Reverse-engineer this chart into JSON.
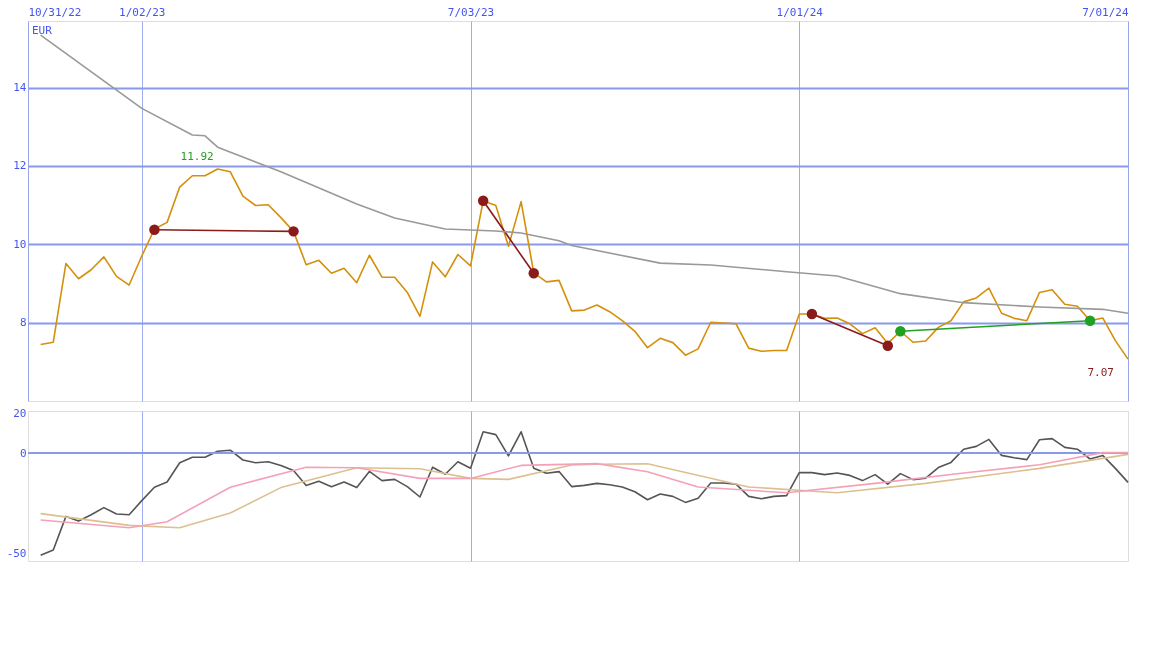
{
  "chart_data": [
    {
      "type": "line",
      "ylabel": "EUR",
      "x": [
        "2022-11-07",
        "2022-11-14",
        "2022-11-21",
        "2022-11-28",
        "2022-12-05",
        "2022-12-12",
        "2022-12-19",
        "2022-12-26",
        "2023-01-02",
        "2023-01-09",
        "2023-01-16",
        "2023-01-23",
        "2023-01-30",
        "2023-02-06",
        "2023-02-13",
        "2023-02-20",
        "2023-02-27",
        "2023-03-06",
        "2023-03-13",
        "2023-03-20",
        "2023-03-27",
        "2023-04-03",
        "2023-04-10",
        "2023-04-17",
        "2023-04-24",
        "2023-05-01",
        "2023-05-08",
        "2023-05-15",
        "2023-05-22",
        "2023-05-29",
        "2023-06-05",
        "2023-06-12",
        "2023-06-19",
        "2023-06-26",
        "2023-07-03",
        "2023-07-10",
        "2023-07-17",
        "2023-07-24",
        "2023-07-31",
        "2023-08-07",
        "2023-08-14",
        "2023-08-21",
        "2023-08-28",
        "2023-09-04",
        "2023-09-11",
        "2023-09-18",
        "2023-09-25",
        "2023-10-02",
        "2023-10-09",
        "2023-10-16",
        "2023-10-23",
        "2023-10-30",
        "2023-11-06",
        "2023-11-13",
        "2023-11-20",
        "2023-11-27",
        "2023-12-04",
        "2023-12-11",
        "2023-12-18",
        "2023-12-25",
        "2024-01-01",
        "2024-01-08",
        "2024-01-15",
        "2024-01-22",
        "2024-01-29",
        "2024-02-05",
        "2024-02-12",
        "2024-02-19",
        "2024-02-26",
        "2024-03-04",
        "2024-03-11",
        "2024-03-18",
        "2024-03-25",
        "2024-04-01",
        "2024-04-08",
        "2024-04-15",
        "2024-04-22",
        "2024-04-29",
        "2024-05-06",
        "2024-05-13",
        "2024-05-20",
        "2024-05-27",
        "2024-06-03",
        "2024-06-10",
        "2024-06-17",
        "2024-06-24",
        "2024-07-01"
      ],
      "series": [
        {
          "color": "#d4900a",
          "marker": "none",
          "values": [
            7.44,
            7.5,
            9.51,
            9.12,
            9.35,
            9.68,
            9.18,
            8.96,
            9.7,
            10.39,
            10.56,
            11.46,
            11.75,
            11.75,
            11.92,
            11.85,
            11.23,
            10.99,
            11.01,
            10.68,
            10.33,
            9.48,
            9.59,
            9.26,
            9.39,
            9.02,
            9.72,
            9.16,
            9.16,
            8.77,
            8.16,
            9.55,
            9.17,
            9.74,
            9.45,
            11.11,
            10.99,
            9.95,
            11.09,
            9.27,
            9.04,
            9.08,
            8.3,
            8.32,
            8.45,
            8.28,
            8.05,
            7.78,
            7.36,
            7.6,
            7.49,
            7.17,
            7.33,
            8.01,
            7.99,
            7.97,
            7.35,
            7.27,
            7.29,
            7.29,
            8.22,
            8.22,
            8.11,
            8.12,
            7.97,
            7.72,
            7.87,
            7.47,
            7.78,
            7.5,
            7.53,
            7.88,
            8.05,
            8.53,
            8.63,
            8.88,
            8.24,
            8.11,
            8.05,
            8.77,
            8.84,
            8.47,
            8.42,
            8.05,
            8.12,
            7.54,
            7.07
          ]
        },
        {
          "color": "#999999",
          "marker": "none",
          "x": [
            "2022-11-07",
            "2023-01-02",
            "2023-01-30",
            "2023-02-06",
            "2023-02-13",
            "2023-03-20",
            "2023-05-01",
            "2023-05-22",
            "2023-06-19",
            "2023-07-17",
            "2023-07-31",
            "2023-08-21",
            "2023-08-28",
            "2023-10-16",
            "2023-11-13",
            "2023-12-25",
            "2024-01-22",
            "2024-02-26",
            "2024-04-01",
            "2024-05-13",
            "2024-06-17",
            "2024-07-01"
          ],
          "values": [
            15.34,
            13.47,
            12.79,
            12.77,
            12.48,
            11.85,
            11.03,
            10.67,
            10.39,
            10.34,
            10.29,
            10.09,
            9.97,
            9.52,
            9.47,
            9.3,
            9.19,
            8.74,
            8.51,
            8.4,
            8.34,
            8.24
          ]
        },
        {
          "color": "#8b1a1a",
          "marker": "circle",
          "x": [
            "2023-01-09",
            "2023-03-27"
          ],
          "values": [
            10.37,
            10.33
          ]
        },
        {
          "color": "#8b1a1a",
          "marker": "circle",
          "x": [
            "2023-07-10",
            "2023-08-07"
          ],
          "values": [
            11.11,
            9.26
          ]
        },
        {
          "color": "#8b1a1a",
          "marker": "circle",
          "x": [
            "2024-01-08",
            "2024-02-19"
          ],
          "values": [
            8.22,
            7.41
          ]
        },
        {
          "color": "#22a022",
          "marker": "circle",
          "x": [
            "2024-02-26",
            "2024-06-10"
          ],
          "values": [
            7.78,
            8.05
          ]
        }
      ],
      "xlim": [
        "2022-10-31",
        "2024-07-01"
      ],
      "xticks": [
        {
          "value": "2022-10-31",
          "label": "10/31/22"
        },
        {
          "value": "2023-01-02",
          "label": "1/02/23"
        },
        {
          "value": "2023-07-03",
          "label": "7/03/23"
        },
        {
          "value": "2024-01-01",
          "label": "1/01/24"
        },
        {
          "value": "2024-07-01",
          "label": "7/01/24"
        }
      ],
      "ylim": [
        6,
        15.7
      ],
      "yticks": [
        8,
        10,
        12,
        14
      ],
      "grid": true,
      "annotations": [
        {
          "text": "11.92",
          "x": "2023-02-13",
          "y": 11.92
        },
        {
          "text": "7.07",
          "x": "2024-07-01",
          "y": 7.07
        }
      ]
    },
    {
      "type": "line",
      "tick_labels": "y",
      "grid": "x",
      "x": [
        "2022-11-07",
        "2022-11-14",
        "2022-11-21",
        "2022-11-28",
        "2022-12-05",
        "2022-12-12",
        "2022-12-19",
        "2022-12-26",
        "2023-01-02",
        "2023-01-09",
        "2023-01-16",
        "2023-01-23",
        "2023-01-30",
        "2023-02-06",
        "2023-02-13",
        "2023-02-20",
        "2023-02-27",
        "2023-03-06",
        "2023-03-13",
        "2023-03-20",
        "2023-03-27",
        "2023-04-03",
        "2023-04-10",
        "2023-04-17",
        "2023-04-24",
        "2023-05-01",
        "2023-05-08",
        "2023-05-15",
        "2023-05-22",
        "2023-05-29",
        "2023-06-05",
        "2023-06-12",
        "2023-06-19",
        "2023-06-26",
        "2023-07-03",
        "2023-07-10",
        "2023-07-17",
        "2023-07-24",
        "2023-07-31",
        "2023-08-07",
        "2023-08-14",
        "2023-08-21",
        "2023-08-28",
        "2023-09-04",
        "2023-09-11",
        "2023-09-18",
        "2023-09-25",
        "2023-10-02",
        "2023-10-09",
        "2023-10-16",
        "2023-10-23",
        "2023-10-30",
        "2023-11-06",
        "2023-11-13",
        "2023-11-20",
        "2023-11-27",
        "2023-12-04",
        "2023-12-11",
        "2023-12-18",
        "2023-12-25",
        "2024-01-01",
        "2024-01-08",
        "2024-01-15",
        "2024-01-22",
        "2024-01-29",
        "2024-02-05",
        "2024-02-12",
        "2024-02-19",
        "2024-02-26",
        "2024-03-04",
        "2024-03-11",
        "2024-03-18",
        "2024-03-25",
        "2024-04-01",
        "2024-04-08",
        "2024-04-15",
        "2024-04-22",
        "2024-04-29",
        "2024-05-06",
        "2024-05-13",
        "2024-05-20",
        "2024-05-27",
        "2024-06-03",
        "2024-06-10",
        "2024-06-17",
        "2024-06-24",
        "2024-07-01"
      ],
      "series": [
        {
          "color": "#555555",
          "values": [
            -51.1,
            -48.5,
            -31.7,
            -34.0,
            -30.9,
            -27.3,
            -30.5,
            -30.9,
            -23.8,
            -17.1,
            -14.5,
            -4.9,
            -2.1,
            -2.1,
            0.9,
            1.4,
            -3.5,
            -4.9,
            -4.4,
            -6.2,
            -8.8,
            -16.2,
            -14.1,
            -16.9,
            -14.5,
            -17.3,
            -9.2,
            -13.8,
            -13.2,
            -16.8,
            -22.0,
            -7.1,
            -10.6,
            -4.4,
            -7.6,
            10.6,
            9.2,
            -1.4,
            10.6,
            -7.6,
            -10.1,
            -9.3,
            -16.8,
            -16.2,
            -15.2,
            -15.9,
            -17.0,
            -19.4,
            -23.4,
            -20.5,
            -21.7,
            -24.7,
            -22.6,
            -15.0,
            -15.0,
            -15.6,
            -21.7,
            -22.9,
            -21.7,
            -21.3,
            -9.8,
            -9.8,
            -10.8,
            -10.0,
            -11.2,
            -13.8,
            -10.8,
            -15.6,
            -10.3,
            -13.3,
            -12.6,
            -7.3,
            -4.7,
            1.9,
            3.3,
            6.8,
            -1.2,
            -2.4,
            -3.3,
            6.6,
            7.2,
            2.8,
            1.9,
            -3.0,
            -1.2,
            -7.7,
            -14.7
          ]
        },
        {
          "color": "#f4a0b8",
          "x": [
            "2022-11-07",
            "2022-12-26",
            "2023-01-16",
            "2023-02-20",
            "2023-04-03",
            "2023-05-01",
            "2023-06-05",
            "2023-07-03",
            "2023-07-31",
            "2023-09-11",
            "2023-10-09",
            "2023-11-06",
            "2023-12-25",
            "2024-02-12",
            "2024-04-01",
            "2024-05-13",
            "2024-06-17",
            "2024-07-01"
          ],
          "values": [
            -33.5,
            -37.4,
            -34.4,
            -17.1,
            -7.1,
            -7.4,
            -12.7,
            -12.7,
            -6.2,
            -5.3,
            -9.4,
            -17.0,
            -19.9,
            -15.2,
            -10.0,
            -5.9,
            0.2,
            0.2
          ]
        },
        {
          "color": "#dcc090",
          "x": [
            "2022-11-07",
            "2022-12-26",
            "2023-01-23",
            "2023-02-20",
            "2023-03-20",
            "2023-05-01",
            "2023-06-05",
            "2023-07-03",
            "2023-07-24",
            "2023-08-28",
            "2023-09-11",
            "2023-10-09",
            "2023-12-04",
            "2024-01-22",
            "2024-03-11",
            "2024-05-13",
            "2024-07-01"
          ],
          "values": [
            -30.3,
            -36.2,
            -37.4,
            -30.0,
            -17.3,
            -7.4,
            -7.9,
            -12.7,
            -13.2,
            -6.0,
            -5.6,
            -5.4,
            -17.0,
            -19.9,
            -15.2,
            -7.7,
            -0.7
          ]
        }
      ],
      "xlim": [
        "2022-10-31",
        "2024-07-01"
      ],
      "xticks": [
        {
          "value": "2023-01-02",
          "label": null
        },
        {
          "value": "2023-07-03",
          "label": null
        },
        {
          "value": "2024-01-01",
          "label": null
        }
      ],
      "ylim": [
        -54,
        21
      ],
      "yticks": [
        20,
        0,
        -50
      ],
      "ref_lines": [
        {
          "axis": "y",
          "value": 0,
          "label": null,
          "color": "#8899ee"
        }
      ]
    }
  ]
}
